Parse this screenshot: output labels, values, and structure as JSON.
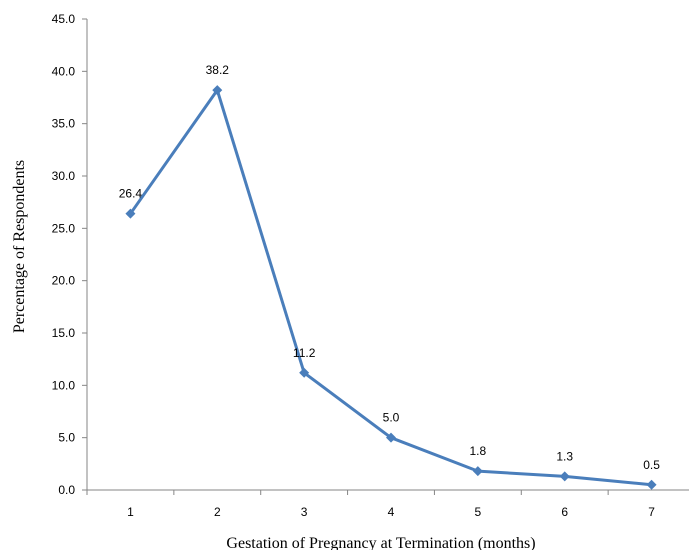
{
  "chart_data": {
    "type": "line",
    "title": "",
    "xlabel": "Gestation of Pregnancy at Termination (months)",
    "ylabel": "Percentage  of Respondents",
    "categories": [
      "1",
      "2",
      "3",
      "4",
      "5",
      "6",
      "7"
    ],
    "series": [
      {
        "values": [
          26.4,
          38.2,
          11.2,
          5.0,
          1.8,
          1.3,
          0.5
        ],
        "color": "#4a7ebb"
      }
    ],
    "data_labels": [
      "26.4",
      "38.2",
      "11.2",
      "5.0",
      "1.8",
      "1.3",
      "0.5"
    ],
    "yticks": [
      "0.0",
      "5.0",
      "10.0",
      "15.0",
      "20.0",
      "25.0",
      "30.0",
      "35.0",
      "40.0",
      "45.0"
    ],
    "ylim": [
      0,
      45
    ],
    "grid": false,
    "legend": "none"
  }
}
